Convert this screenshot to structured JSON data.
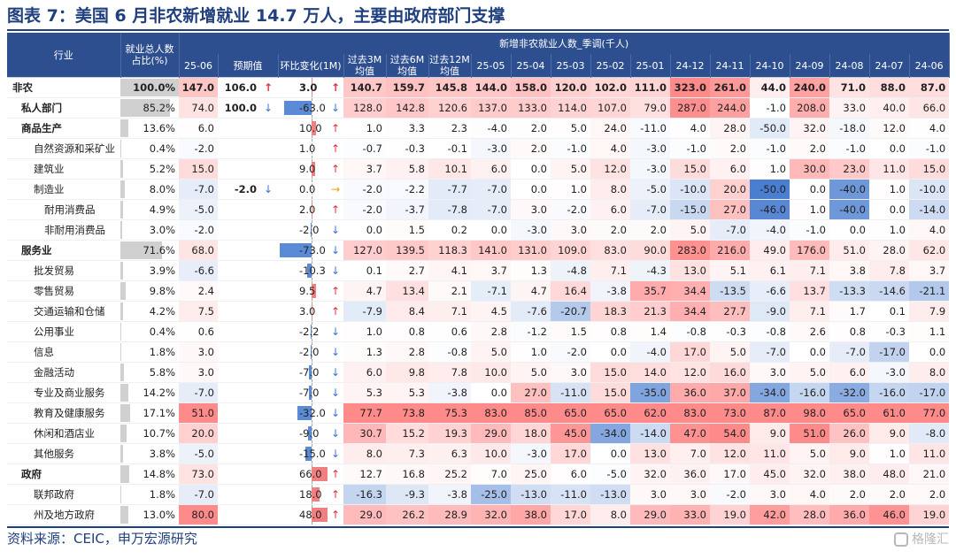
{
  "title": "图表 7：美国 6 月非农新增就业 14.7 万人，主要由政府部门支撑",
  "source": "资料来源：CEIC，申万宏源研究",
  "watermark": "格隆汇",
  "colors": {
    "header_bg": "#2e4f8f",
    "positive_max": "#f08a8a",
    "negative_max": "#4a7ed0",
    "share_bar": "#d0d0d0"
  },
  "header": {
    "industry": "行业",
    "share": "就业总人数占比(%)",
    "monthly_group": "新增非农就业人数_季调(千人)",
    "col_2506": "25-06",
    "col_pred": "预期值",
    "col_chg": "环比变化(1M)",
    "col_avg3": "过去3M均值",
    "col_avg6": "过去6M均值",
    "col_avg12": "过去12M均值",
    "months": [
      "25-05",
      "25-04",
      "25-03",
      "25-02",
      "25-01",
      "24-12",
      "24-11",
      "24-10",
      "24-09",
      "24-08",
      "24-07",
      "24-06"
    ]
  },
  "rows": [
    {
      "name": "非农",
      "level": 0,
      "share": "100.0%",
      "share_pct": 100,
      "v2506": "147.0",
      "pred": "106.0",
      "pred_dir": "up",
      "chg": "3.0",
      "chg_dir": "up",
      "avg3": "140.7",
      "avg6": "159.7",
      "avg12": "145.8",
      "months": [
        "144.0",
        "158.0",
        "120.0",
        "102.0",
        "111.0",
        "323.0",
        "261.0",
        "44.0",
        "240.0",
        "71.0",
        "88.0",
        "87.0"
      ]
    },
    {
      "name": "私人部门",
      "level": 1,
      "share": "85.2%",
      "share_pct": 85.2,
      "v2506": "74.0",
      "pred": "100.0",
      "pred_dir": "down",
      "chg": "-63.0",
      "chg_dir": "down",
      "avg3": "128.0",
      "avg6": "142.8",
      "avg12": "120.6",
      "months": [
        "137.0",
        "133.0",
        "114.0",
        "107.0",
        "79.0",
        "287.0",
        "244.0",
        "-1.0",
        "208.0",
        "33.0",
        "40.0",
        "66.0"
      ]
    },
    {
      "name": "商品生产",
      "level": 1,
      "share": "13.6%",
      "share_pct": 13.6,
      "v2506": "6.0",
      "pred": "",
      "pred_dir": "",
      "chg": "10.0",
      "chg_dir": "up",
      "avg3": "1.0",
      "avg6": "3.3",
      "avg12": "2.3",
      "months": [
        "-4.0",
        "2.0",
        "5.0",
        "24.0",
        "-11.0",
        "4.0",
        "28.0",
        "-50.0",
        "32.0",
        "-18.0",
        "12.0",
        "4.0"
      ]
    },
    {
      "name": "自然资源和采矿业",
      "level": 2,
      "share": "0.4%",
      "share_pct": 0.4,
      "v2506": "-2.0",
      "pred": "",
      "pred_dir": "",
      "chg": "1.0",
      "chg_dir": "up",
      "avg3": "-0.7",
      "avg6": "-0.3",
      "avg12": "-0.1",
      "months": [
        "-3.0",
        "2.0",
        "-1.0",
        "4.0",
        "-3.0",
        "-1.0",
        "2.0",
        "-1.0",
        "2.0",
        "-1.0",
        "0.0",
        "-1.0"
      ]
    },
    {
      "name": "建筑业",
      "level": 2,
      "share": "5.2%",
      "share_pct": 5.2,
      "v2506": "15.0",
      "pred": "",
      "pred_dir": "",
      "chg": "9.0",
      "chg_dir": "up",
      "avg3": "3.7",
      "avg6": "5.8",
      "avg12": "10.1",
      "months": [
        "6.0",
        "0.0",
        "5.0",
        "12.0",
        "-3.0",
        "15.0",
        "6.0",
        "1.0",
        "30.0",
        "23.0",
        "11.0",
        "15.0"
      ]
    },
    {
      "name": "制造业",
      "level": 2,
      "share": "8.0%",
      "share_pct": 8.0,
      "v2506": "-7.0",
      "pred": "-2.0",
      "pred_dir": "down",
      "chg": "0.0",
      "chg_dir": "flat",
      "avg3": "-2.0",
      "avg6": "-2.2",
      "avg12": "-7.7",
      "months": [
        "-7.0",
        "0.0",
        "1.0",
        "8.0",
        "-5.0",
        "-10.0",
        "20.0",
        "-50.0",
        "0.0",
        "-40.0",
        "1.0",
        "-10.0"
      ]
    },
    {
      "name": "耐用消费品",
      "level": 3,
      "share": "4.9%",
      "share_pct": 4.9,
      "v2506": "-5.0",
      "pred": "",
      "pred_dir": "",
      "chg": "2.0",
      "chg_dir": "up",
      "avg3": "-2.0",
      "avg6": "-3.7",
      "avg12": "-7.8",
      "months": [
        "-7.0",
        "3.0",
        "-2.0",
        "6.0",
        "-7.0",
        "-15.0",
        "27.0",
        "-46.0",
        "1.0",
        "-40.0",
        "0.0",
        "-14.0"
      ]
    },
    {
      "name": "非耐用消费品",
      "level": 3,
      "share": "3.0%",
      "share_pct": 3.0,
      "v2506": "-2.0",
      "pred": "",
      "pred_dir": "",
      "chg": "-2.0",
      "chg_dir": "down",
      "avg3": "0.0",
      "avg6": "1.5",
      "avg12": "0.2",
      "months": [
        "0.0",
        "-3.0",
        "3.0",
        "2.0",
        "2.0",
        "5.0",
        "-7.0",
        "-4.0",
        "-1.0",
        "0.0",
        "1.0",
        "4.0"
      ]
    },
    {
      "name": "服务业",
      "level": 1,
      "share": "71.6%",
      "share_pct": 71.6,
      "v2506": "68.0",
      "pred": "",
      "pred_dir": "",
      "chg": "-73.0",
      "chg_dir": "down",
      "avg3": "127.0",
      "avg6": "139.5",
      "avg12": "118.3",
      "months": [
        "141.0",
        "131.0",
        "109.0",
        "83.0",
        "90.0",
        "283.0",
        "216.0",
        "49.0",
        "176.0",
        "51.0",
        "28.0",
        "62.0"
      ]
    },
    {
      "name": "批发贸易",
      "level": 2,
      "share": "3.9%",
      "share_pct": 3.9,
      "v2506": "-6.6",
      "pred": "",
      "pred_dir": "",
      "chg": "-10.3",
      "chg_dir": "down",
      "avg3": "0.1",
      "avg6": "2.7",
      "avg12": "4.1",
      "months": [
        "3.7",
        "1.3",
        "-4.8",
        "7.1",
        "-4.3",
        "13.0",
        "5.1",
        "6.1",
        "7.1",
        "3.8",
        "7.8",
        "3.7"
      ]
    },
    {
      "name": "零售贸易",
      "level": 2,
      "share": "9.8%",
      "share_pct": 9.8,
      "v2506": "2.4",
      "pred": "",
      "pred_dir": "",
      "chg": "9.5",
      "chg_dir": "up",
      "avg3": "4.7",
      "avg6": "13.4",
      "avg12": "2.1",
      "months": [
        "-7.1",
        "4.7",
        "16.4",
        "-3.8",
        "35.7",
        "34.4",
        "-13.5",
        "-6.6",
        "13.7",
        "-13.3",
        "-14.6",
        "-21.1"
      ]
    },
    {
      "name": "交通运输和仓储",
      "level": 2,
      "share": "4.2%",
      "share_pct": 4.2,
      "v2506": "7.5",
      "pred": "",
      "pred_dir": "",
      "chg": "3.0",
      "chg_dir": "up",
      "avg3": "-7.9",
      "avg6": "8.4",
      "avg12": "7.1",
      "months": [
        "4.5",
        "-7.6",
        "-20.7",
        "18.3",
        "21.3",
        "34.4",
        "27.7",
        "-9.0",
        "7.1",
        "1.7",
        "0.1",
        "7.9"
      ]
    },
    {
      "name": "公用事业",
      "level": 2,
      "share": "0.4%",
      "share_pct": 0.4,
      "v2506": "0.6",
      "pred": "",
      "pred_dir": "",
      "chg": "-2.2",
      "chg_dir": "down",
      "avg3": "1.0",
      "avg6": "0.8",
      "avg12": "0.6",
      "months": [
        "2.8",
        "-1.2",
        "1.5",
        "0.8",
        "1.4",
        "-0.8",
        "-0.3",
        "-0.8",
        "2.6",
        "0.8",
        "-0.3",
        "1.1"
      ]
    },
    {
      "name": "信息",
      "level": 2,
      "share": "1.8%",
      "share_pct": 1.8,
      "v2506": "3.0",
      "pred": "",
      "pred_dir": "",
      "chg": "-2.0",
      "chg_dir": "down",
      "avg3": "1.3",
      "avg6": "2.8",
      "avg12": "-0.8",
      "months": [
        "5.0",
        "1.0",
        "-2.0",
        "0.0",
        "-4.0",
        "17.0",
        "5.0",
        "-7.0",
        "0.0",
        "-7.0",
        "-17.0",
        "0.0"
      ]
    },
    {
      "name": "金融活动",
      "level": 2,
      "share": "5.8%",
      "share_pct": 5.8,
      "v2506": "3.0",
      "pred": "",
      "pred_dir": "",
      "chg": "-7.0",
      "chg_dir": "down",
      "avg3": "6.0",
      "avg6": "9.8",
      "avg12": "7.8",
      "months": [
        "10.0",
        "5.0",
        "3.0",
        "15.0",
        "14.0",
        "12.0",
        "16.0",
        "3.0",
        "5.0",
        "6.0",
        "-3.0",
        "8.0"
      ]
    },
    {
      "name": "专业及商业服务",
      "level": 2,
      "share": "14.2%",
      "share_pct": 14.2,
      "v2506": "-7.0",
      "pred": "",
      "pred_dir": "",
      "chg": "-7.0",
      "chg_dir": "down",
      "avg3": "5.3",
      "avg6": "5.3",
      "avg12": "-3.8",
      "months": [
        "0.0",
        "27.0",
        "-11.0",
        "15.0",
        "-35.0",
        "36.0",
        "37.0",
        "-34.0",
        "-16.0",
        "-32.0",
        "-16.0",
        "-17.0"
      ]
    },
    {
      "name": "教育及健康服务",
      "level": 2,
      "share": "17.1%",
      "share_pct": 17.1,
      "v2506": "51.0",
      "pred": "",
      "pred_dir": "",
      "chg": "-32.0",
      "chg_dir": "down",
      "avg3": "77.7",
      "avg6": "73.8",
      "avg12": "75.3",
      "months": [
        "83.0",
        "85.0",
        "65.0",
        "65.0",
        "62.0",
        "83.0",
        "73.0",
        "87.0",
        "98.0",
        "65.0",
        "61.0",
        "77.0"
      ]
    },
    {
      "name": "休闲和酒店业",
      "level": 2,
      "share": "10.7%",
      "share_pct": 10.7,
      "v2506": "20.0",
      "pred": "",
      "pred_dir": "",
      "chg": "-9.0",
      "chg_dir": "down",
      "avg3": "30.7",
      "avg6": "15.2",
      "avg12": "19.3",
      "months": [
        "29.0",
        "18.0",
        "45.0",
        "-34.0",
        "-14.0",
        "47.0",
        "54.0",
        "9.0",
        "51.0",
        "26.0",
        "9.0",
        "-8.0"
      ]
    },
    {
      "name": "其他服务",
      "level": 2,
      "share": "3.8%",
      "share_pct": 3.8,
      "v2506": "-5.0",
      "pred": "",
      "pred_dir": "",
      "chg": "-15.0",
      "chg_dir": "down",
      "avg3": "8.0",
      "avg6": "7.3",
      "avg12": "6.3",
      "months": [
        "10.0",
        "-3.0",
        "17.0",
        "0.0",
        "13.0",
        "7.0",
        "12.0",
        "11.0",
        "5.0",
        "9.0",
        "1.0",
        "11.0"
      ]
    },
    {
      "name": "政府",
      "level": 1,
      "share": "14.8%",
      "share_pct": 14.8,
      "v2506": "73.0",
      "pred": "",
      "pred_dir": "",
      "chg": "66.0",
      "chg_dir": "up",
      "avg3": "12.7",
      "avg6": "16.8",
      "avg12": "25.2",
      "months": [
        "7.0",
        "25.0",
        "6.0",
        "-5.0",
        "32.0",
        "36.0",
        "17.0",
        "45.0",
        "32.0",
        "38.0",
        "48.0",
        "21.0"
      ]
    },
    {
      "name": "联邦政府",
      "level": 2,
      "share": "1.8%",
      "share_pct": 1.8,
      "v2506": "-7.0",
      "pred": "",
      "pred_dir": "",
      "chg": "18.0",
      "chg_dir": "up",
      "avg3": "-16.3",
      "avg6": "-9.3",
      "avg12": "-3.8",
      "months": [
        "-25.0",
        "-13.0",
        "-11.0",
        "-13.0",
        "3.0",
        "3.0",
        "-2.0",
        "3.0",
        "4.0",
        "2.0",
        "2.0",
        "2.0"
      ]
    },
    {
      "name": "州及地方政府",
      "level": 2,
      "share": "13.0%",
      "share_pct": 13.0,
      "v2506": "80.0",
      "pred": "",
      "pred_dir": "",
      "chg": "48.0",
      "chg_dir": "up",
      "avg3": "29.0",
      "avg6": "26.2",
      "avg12": "28.9",
      "months": [
        "32.0",
        "38.0",
        "17.0",
        "8.0",
        "29.0",
        "33.0",
        "19.0",
        "42.0",
        "28.0",
        "36.0",
        "46.0",
        "19.0"
      ]
    }
  ]
}
